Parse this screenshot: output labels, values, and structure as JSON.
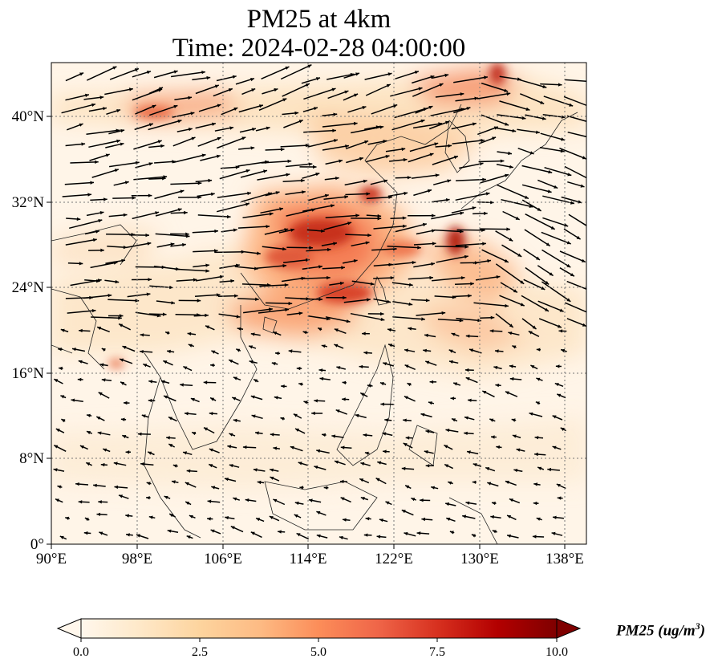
{
  "title": {
    "line1": "PM25 at 4km",
    "line2": "Time: 2024-02-28 04:00:00"
  },
  "axes": {
    "lon_ticks": [
      "90°E",
      "98°E",
      "106°E",
      "114°E",
      "122°E",
      "130°E",
      "138°E"
    ],
    "lat_ticks": [
      "40°N",
      "32°N",
      "24°N",
      "16°N",
      "8°N",
      "0°"
    ],
    "lon_range": [
      90,
      140
    ],
    "lat_range": [
      0,
      45
    ],
    "grid": "dotted"
  },
  "colorbar": {
    "label": "PM25 (ug/m",
    "label_exp": "3",
    "label_close": ")",
    "ticks": [
      "0.0",
      "2.5",
      "5.0",
      "7.5",
      "10.0"
    ],
    "range": [
      0,
      10
    ],
    "colormap": "OrRd",
    "extend": "both"
  },
  "chart_data": {
    "type": "heatmap",
    "variable": "PM25",
    "units": "ug/m3",
    "overlay": "wind vectors",
    "hotspots": [
      {
        "lon": 116.5,
        "lat": 28.5,
        "value": 9.0
      },
      {
        "lon": 119.0,
        "lat": 33.0,
        "value": 9.0
      },
      {
        "lon": 118.0,
        "lat": 25.5,
        "value": 8.5
      },
      {
        "lon": 128.0,
        "lat": 28.0,
        "value": 9.0
      },
      {
        "lon": 131.5,
        "lat": 43.5,
        "value": 9.0
      },
      {
        "lon": 100.0,
        "lat": 40.0,
        "value": 6.5
      },
      {
        "lon": 115.0,
        "lat": 22.5,
        "value": 7.5
      },
      {
        "lon": 127.0,
        "lat": 42.0,
        "value": 7.0
      }
    ]
  }
}
